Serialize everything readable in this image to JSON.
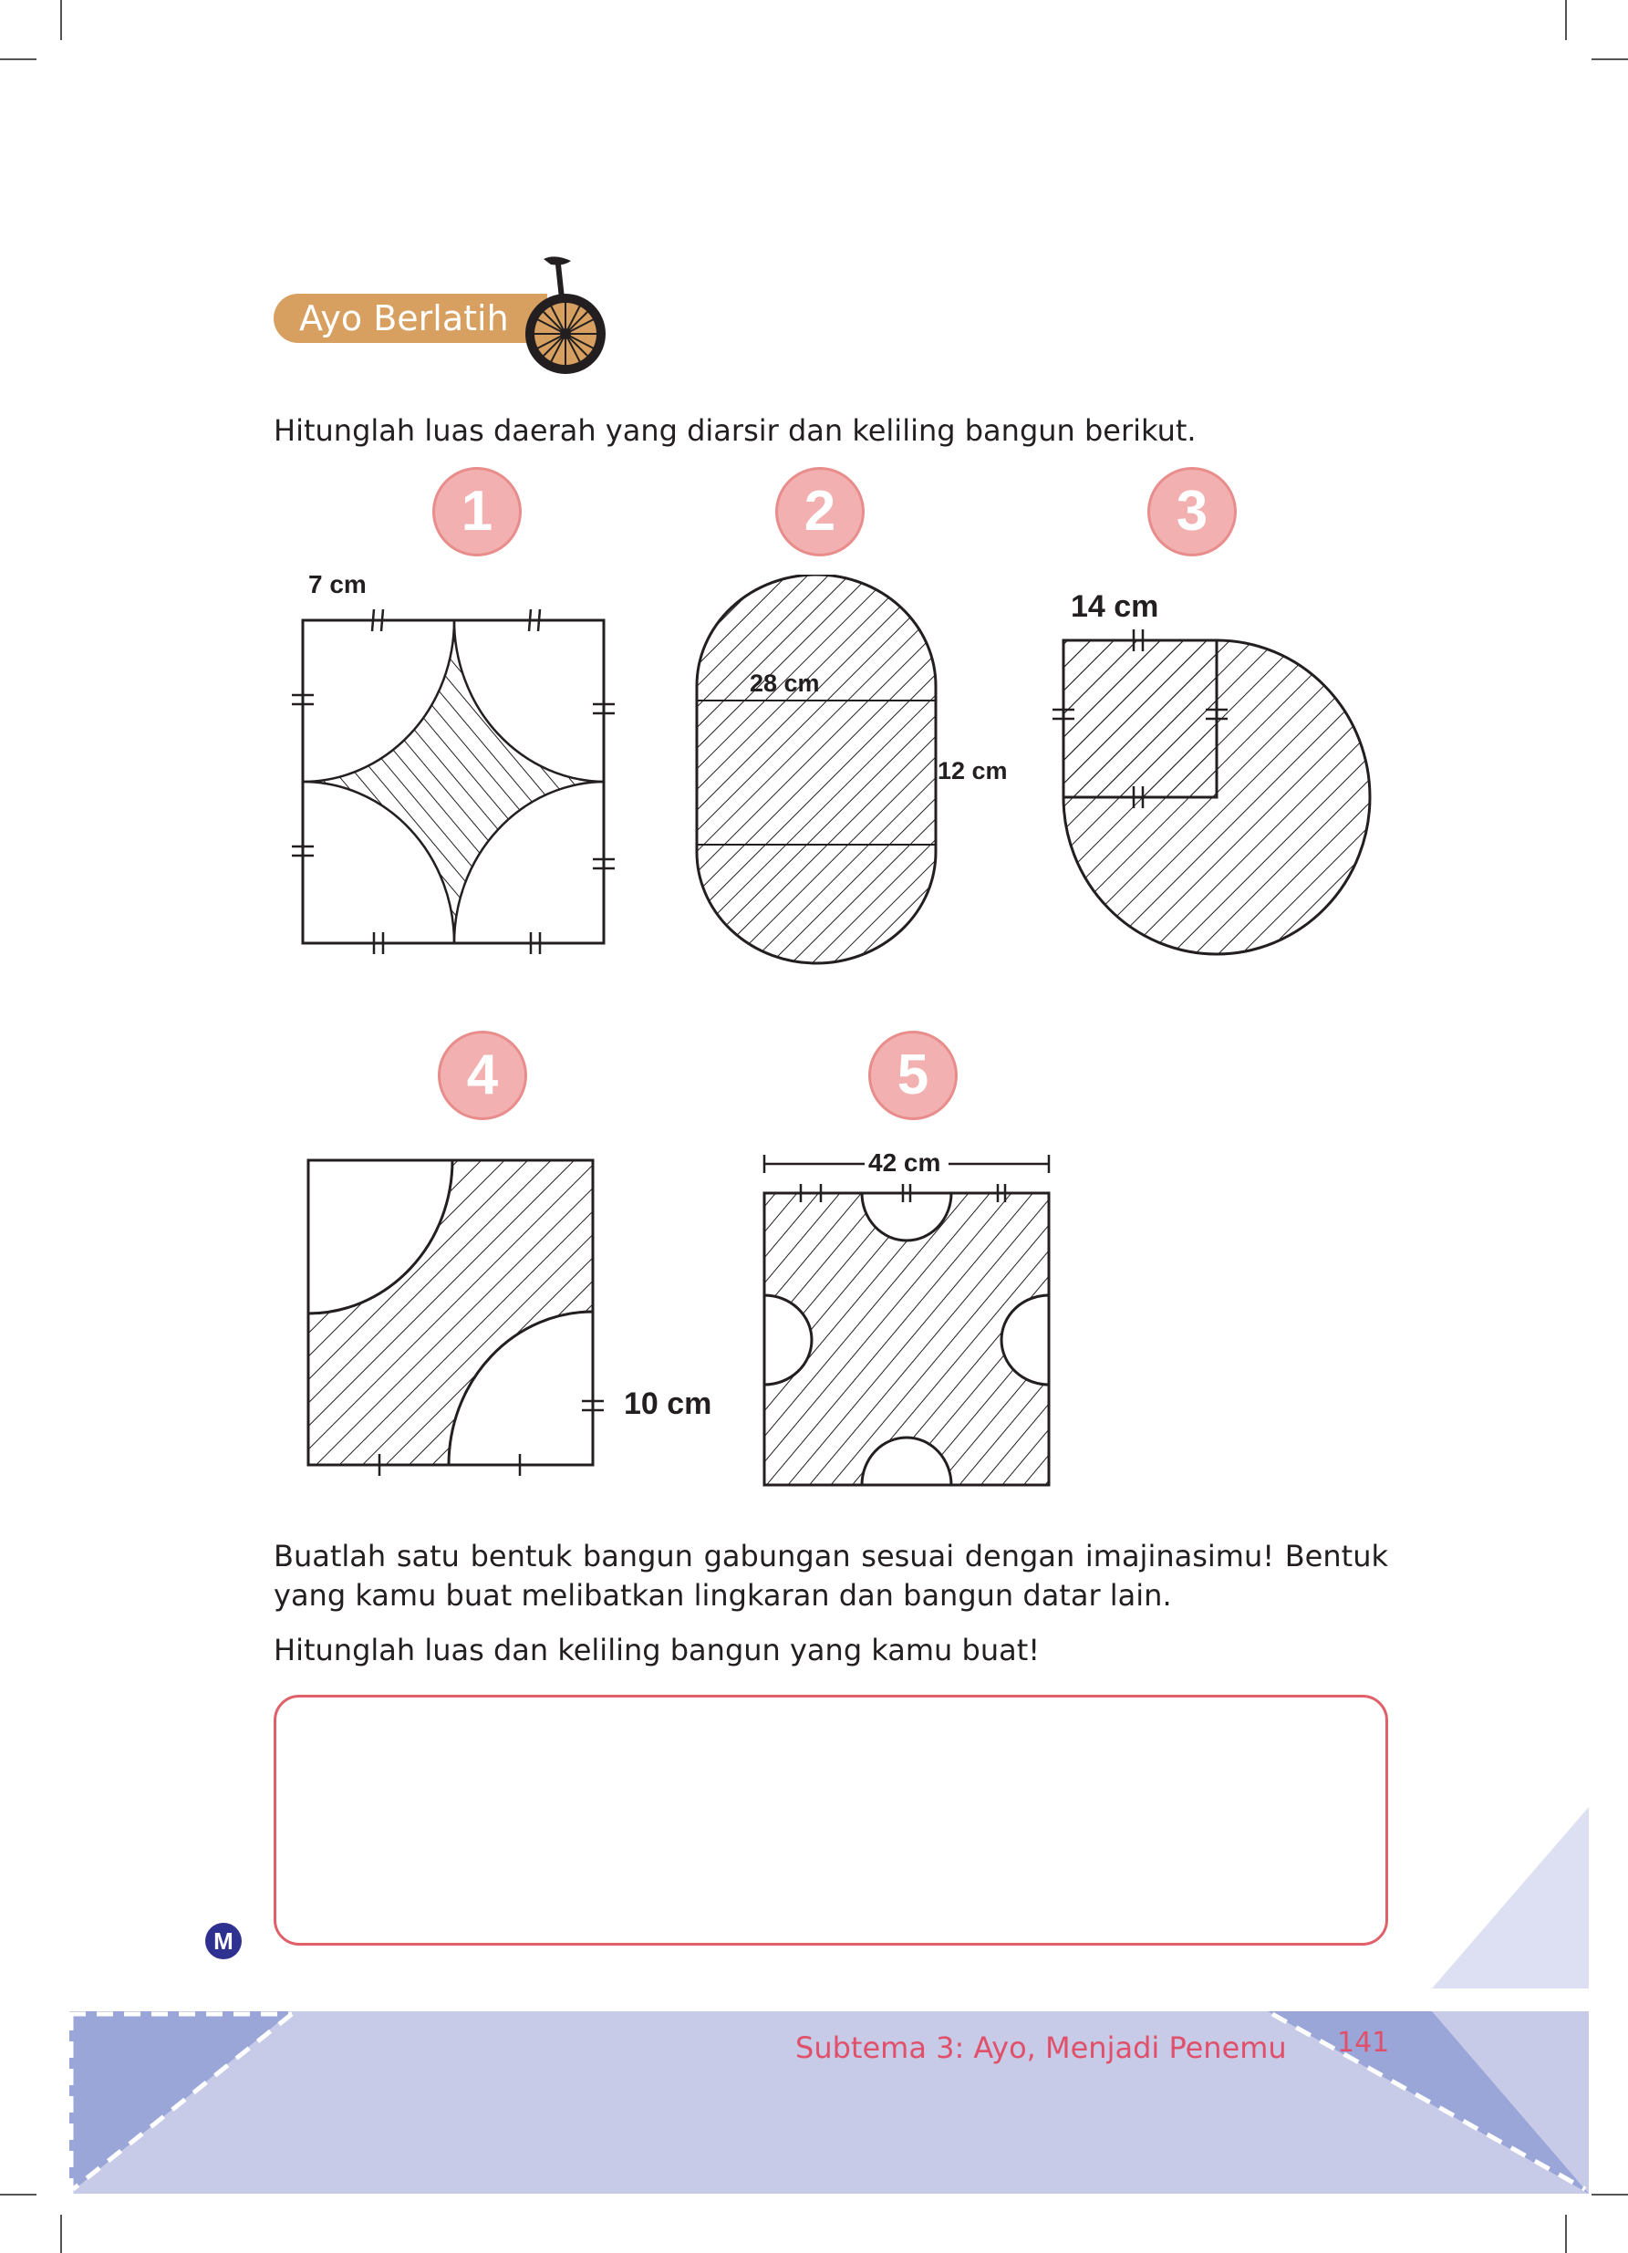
{
  "header": {
    "banner_label": "Ayo Berlatih",
    "banner_icon": "unicycle-icon"
  },
  "instruction": "Hitunglah luas daerah yang diarsir dan keliling bangun berikut.",
  "problems": [
    {
      "number": "1",
      "label": "7 cm"
    },
    {
      "number": "2",
      "label_a": "28 cm",
      "label_b": "12 cm"
    },
    {
      "number": "3",
      "label": "14 cm"
    },
    {
      "number": "4",
      "label": "10 cm"
    },
    {
      "number": "5",
      "label": "42 cm"
    }
  ],
  "task": {
    "line1": "Buatlah satu bentuk bangun gabungan sesuai dengan imajinasimu! Bentuk",
    "line2": "yang kamu buat melibatkan lingkaran dan bangun datar lain.",
    "line3": "Hitunglah luas dan keliling bangun yang kamu buat!"
  },
  "margin_mark": "M",
  "footer": {
    "subtheme": "Subtema 3: Ayo, Menjadi Penemu",
    "page_number": "141"
  },
  "colors": {
    "banner": "#d8a060",
    "number_badge": "#f2b0b0",
    "answer_border": "#e0606a",
    "footer_band": "#c7cbe8",
    "footer_dark": "#9aa6d8",
    "footer_text": "#e0506a"
  }
}
